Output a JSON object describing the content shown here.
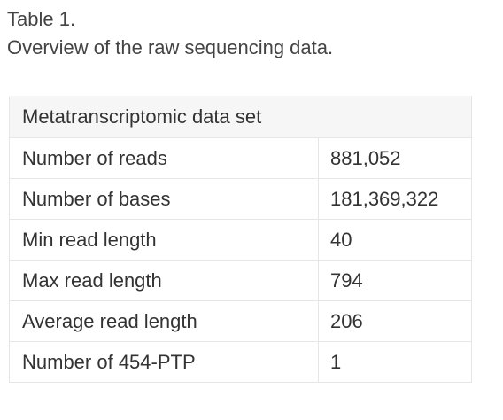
{
  "caption": {
    "label": "Table 1.",
    "title": "Overview of the raw sequencing data."
  },
  "table": {
    "header": "Metatranscriptomic data set",
    "rows": [
      {
        "label": "Number of reads",
        "value": "881,052"
      },
      {
        "label": "Number of bases",
        "value": "181,369,322"
      },
      {
        "label": "Min read length",
        "value": "40"
      },
      {
        "label": "Max read length",
        "value": "794"
      },
      {
        "label": "Average read length",
        "value": "206"
      },
      {
        "label": "Number of 454-PTP",
        "value": "1"
      }
    ]
  }
}
